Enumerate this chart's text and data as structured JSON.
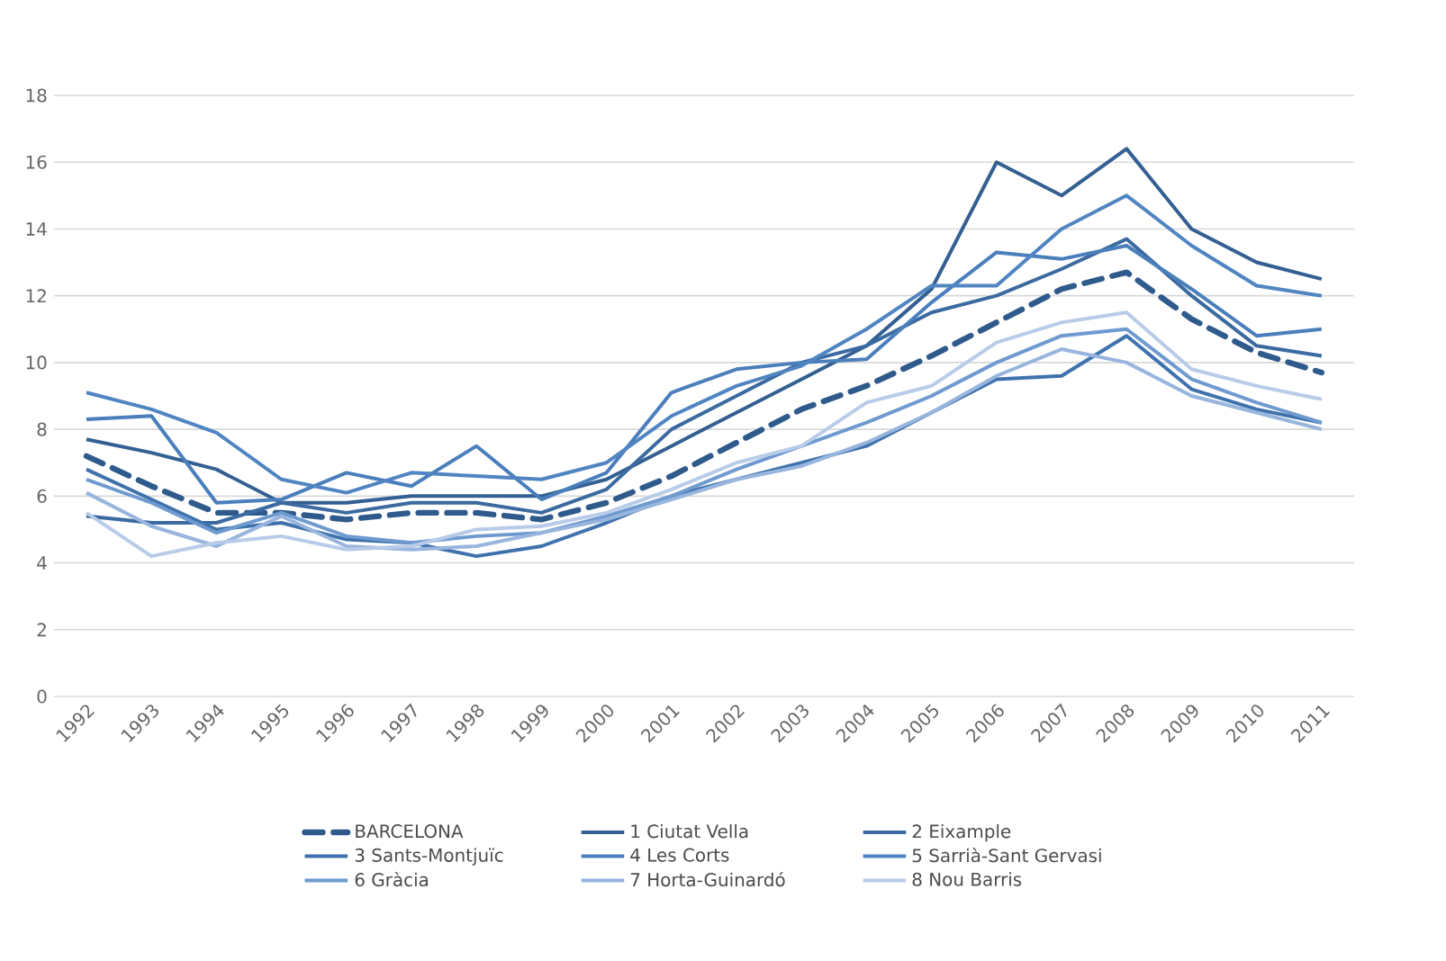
{
  "chart_data": {
    "type": "line",
    "categories": [
      "1992",
      "1993",
      "1994",
      "1995",
      "1996",
      "1997",
      "1998",
      "1999",
      "2000",
      "2001",
      "2002",
      "2003",
      "2004",
      "2005",
      "2006",
      "2007",
      "2008",
      "2009",
      "2010",
      "2011"
    ],
    "ylim": [
      0,
      18
    ],
    "yticks": [
      0,
      2,
      4,
      6,
      8,
      10,
      12,
      14,
      16,
      18
    ],
    "grid": "y",
    "legend": "bottom",
    "marker": "none",
    "series": [
      {
        "name": "BARCELONA",
        "color": "#2f5a8c",
        "line_style": "dashed",
        "values": [
          7.2,
          6.3,
          5.5,
          5.5,
          5.3,
          5.5,
          5.5,
          5.3,
          5.8,
          6.6,
          7.6,
          8.6,
          9.3,
          10.2,
          11.2,
          12.2,
          12.7,
          11.3,
          10.3,
          9.7
        ]
      },
      {
        "name": "1 Ciutat Vella",
        "color": "#335f92",
        "values": [
          7.7,
          7.3,
          6.8,
          5.8,
          5.8,
          6.0,
          6.0,
          6.0,
          6.5,
          7.5,
          8.5,
          9.5,
          10.5,
          12.2,
          16.0,
          15.0,
          16.4,
          14.0,
          13.0,
          12.5
        ]
      },
      {
        "name": "2 Eixample",
        "color": "#3a6aa0",
        "values": [
          5.4,
          5.2,
          5.2,
          5.8,
          5.5,
          5.8,
          5.8,
          5.5,
          6.2,
          8.0,
          9.0,
          10.0,
          10.5,
          11.5,
          12.0,
          12.8,
          13.7,
          12.0,
          10.5,
          10.2
        ]
      },
      {
        "name": "3 Sants-Montjuïc",
        "color": "#3f72ad",
        "values": [
          6.8,
          5.9,
          5.0,
          5.2,
          4.7,
          4.6,
          4.2,
          4.5,
          5.2,
          6.0,
          6.5,
          7.0,
          7.5,
          8.5,
          9.5,
          9.6,
          10.8,
          9.2,
          8.6,
          8.2
        ]
      },
      {
        "name": "4 Les Corts",
        "color": "#4a7fbb",
        "values": [
          8.3,
          8.4,
          5.8,
          5.9,
          6.7,
          6.3,
          7.5,
          5.9,
          6.7,
          9.1,
          9.8,
          10.0,
          10.1,
          11.8,
          13.3,
          13.1,
          13.5,
          12.2,
          10.8,
          11.0
        ]
      },
      {
        "name": "5 Sarrià-Sant Gervasi",
        "color": "#5085c2",
        "values": [
          9.1,
          8.6,
          7.9,
          6.5,
          6.1,
          6.7,
          6.6,
          6.5,
          7.0,
          8.4,
          9.3,
          9.9,
          11.0,
          12.3,
          12.3,
          14.0,
          15.0,
          13.5,
          12.3,
          12.0
        ]
      },
      {
        "name": "6 Gràcia",
        "color": "#6e9ad0",
        "values": [
          6.5,
          5.8,
          4.9,
          5.5,
          4.8,
          4.6,
          4.8,
          4.9,
          5.4,
          6.0,
          6.8,
          7.5,
          8.2,
          9.0,
          10.0,
          10.8,
          11.0,
          9.5,
          8.8,
          8.2
        ]
      },
      {
        "name": "7 Horta-Guinardó",
        "color": "#97b5dd",
        "values": [
          6.1,
          5.1,
          4.5,
          5.4,
          4.5,
          4.4,
          4.5,
          4.9,
          5.3,
          5.9,
          6.5,
          6.9,
          7.6,
          8.5,
          9.6,
          10.4,
          10.0,
          9.0,
          8.5,
          8.0
        ]
      },
      {
        "name": "8 Nou Barris",
        "color": "#b8cbe8",
        "values": [
          5.5,
          4.2,
          4.6,
          4.8,
          4.4,
          4.5,
          5.0,
          5.1,
          5.5,
          6.2,
          7.0,
          7.5,
          8.8,
          9.3,
          10.6,
          11.2,
          11.5,
          9.8,
          9.3,
          8.9
        ]
      }
    ]
  }
}
